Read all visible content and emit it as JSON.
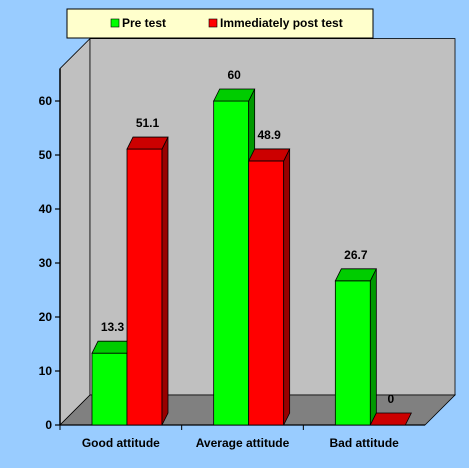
{
  "chart_data": {
    "type": "bar",
    "categories": [
      "Good attitude",
      "Average attitude",
      "Bad attitude"
    ],
    "series": [
      {
        "name": "Pre test",
        "values": [
          13.3,
          60,
          26.7
        ],
        "color": "#00ff00",
        "side": "#009900",
        "top": "#00cc00"
      },
      {
        "name": "Immediately post test",
        "values": [
          51.1,
          48.9,
          0
        ],
        "color": "#ff0000",
        "side": "#990000",
        "top": "#cc0000"
      }
    ],
    "data_labels": [
      [
        "13.3",
        "60",
        "26.7"
      ],
      [
        "51.1",
        "48.9",
        "0"
      ]
    ],
    "ylim": [
      0,
      60
    ],
    "yticks": [
      0,
      10,
      20,
      30,
      40,
      50,
      60
    ],
    "grid": false,
    "legend_position": "top",
    "background_color": "#99ccff",
    "wall_color": "#c0c0c0",
    "floor_color": "#808080",
    "legend_background": "#ffffcc"
  }
}
